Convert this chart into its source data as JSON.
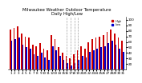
{
  "title": "Milwaukee Weather Outdoor Temperature\nDaily High/Low",
  "title_fontsize": 3.8,
  "background_color": "#ffffff",
  "ylim": [
    10,
    105
  ],
  "days": [
    1,
    2,
    3,
    4,
    5,
    6,
    7,
    8,
    9,
    10,
    11,
    12,
    13,
    14,
    15,
    16,
    17,
    18,
    19,
    20,
    21,
    22,
    23,
    24,
    25,
    26,
    27,
    28,
    29,
    30,
    31
  ],
  "highs": [
    82,
    85,
    88,
    75,
    70,
    68,
    55,
    52,
    58,
    48,
    45,
    72,
    65,
    50,
    40,
    35,
    30,
    38,
    45,
    52,
    48,
    60,
    65,
    68,
    70,
    72,
    78,
    82,
    75,
    68,
    62
  ],
  "lows": [
    62,
    65,
    68,
    55,
    50,
    48,
    38,
    35,
    40,
    32,
    28,
    52,
    45,
    35,
    28,
    22,
    18,
    22,
    28,
    35,
    32,
    42,
    45,
    48,
    50,
    52,
    58,
    62,
    55,
    48,
    42
  ],
  "high_color": "#cc0000",
  "low_color": "#0000cc",
  "dashed_line_indices": [
    15,
    16,
    17,
    18
  ],
  "yticks": [
    20,
    30,
    40,
    50,
    60,
    70,
    80,
    90,
    100
  ],
  "tick_fontsize": 3.0,
  "legend_high": "High",
  "legend_low": "Low"
}
